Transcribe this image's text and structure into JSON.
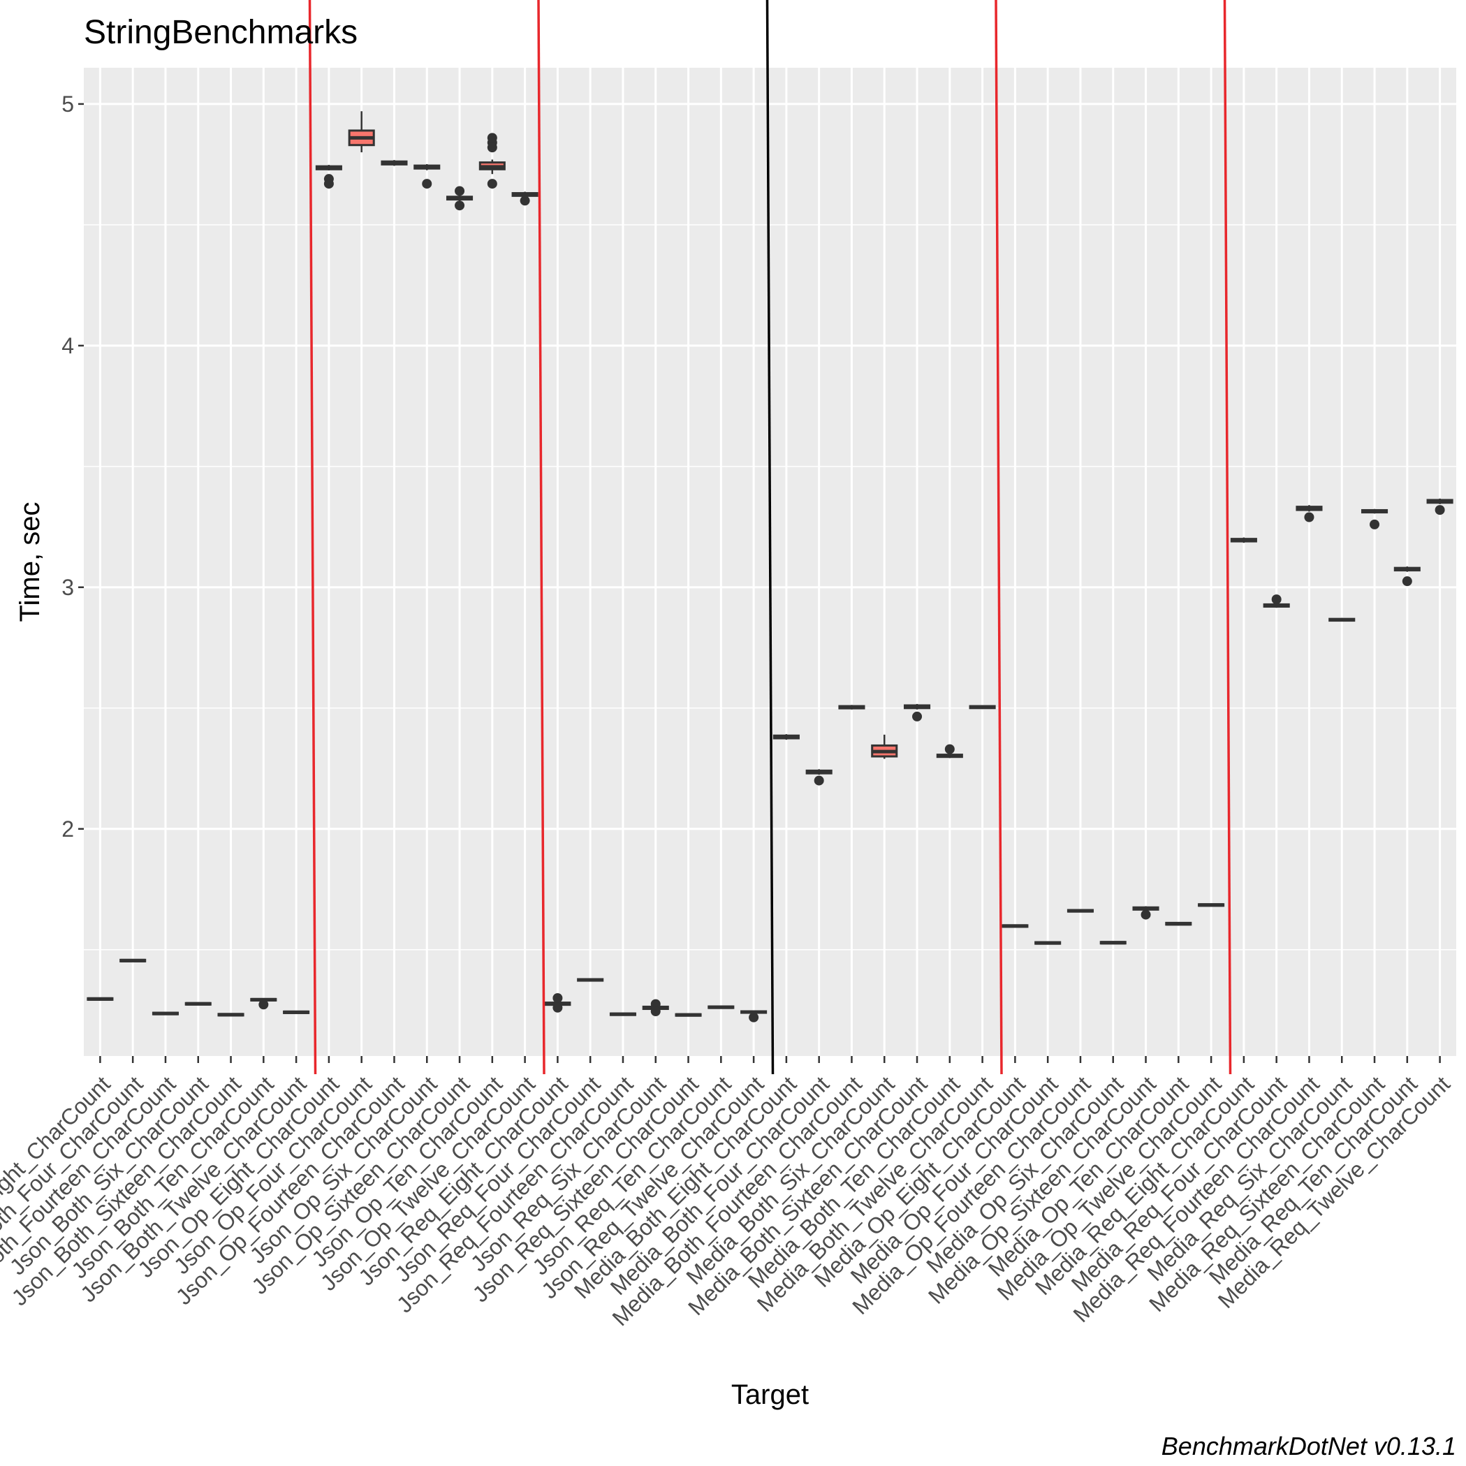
{
  "chart_data": {
    "type": "box",
    "title": "StringBenchmarks",
    "xlabel": "Target",
    "ylabel": "Time, sec",
    "caption": "BenchmarkDotNet v0.13.1",
    "ylim": [
      1.06,
      5.15
    ],
    "yticks": [
      2,
      3,
      4,
      5
    ],
    "grid": true,
    "box_fill": "#f8766d",
    "panel_bg": "#ebebeb",
    "categories": [
      "Json_Both_Eight_CharCount",
      "Json_Both_Four_CharCount",
      "Json_Both_Fourteen_CharCount",
      "Json_Both_Six_CharCount",
      "Json_Both_Sixteen_CharCount",
      "Json_Both_Ten_CharCount",
      "Json_Both_Twelve_CharCount",
      "Json_Op_Eight_CharCount",
      "Json_Op_Four_CharCount",
      "Json_Op_Fourteen_CharCount",
      "Json_Op_Six_CharCount",
      "Json_Op_Sixteen_CharCount",
      "Json_Op_Ten_CharCount",
      "Json_Op_Twelve_CharCount",
      "Json_Req_Eight_CharCount",
      "Json_Req_Four_CharCount",
      "Json_Req_Fourteen_CharCount",
      "Json_Req_Six_CharCount",
      "Json_Req_Sixteen_CharCount",
      "Json_Req_Ten_CharCount",
      "Json_Req_Twelve_CharCount",
      "Media_Both_Eight_CharCount",
      "Media_Both_Four_CharCount",
      "Media_Both_Fourteen_CharCount",
      "Media_Both_Six_CharCount",
      "Media_Both_Sixteen_CharCount",
      "Media_Both_Ten_CharCount",
      "Media_Both_Twelve_CharCount",
      "Media_Op_Eight_CharCount",
      "Media_Op_Four_CharCount",
      "Media_Op_Fourteen_CharCount",
      "Media_Op_Six_CharCount",
      "Media_Op_Sixteen_CharCount",
      "Media_Op_Ten_CharCount",
      "Media_Op_Twelve_CharCount",
      "Media_Req_Eight_CharCount",
      "Media_Req_Four_CharCount",
      "Media_Req_Fourteen_CharCount",
      "Media_Req_Six_CharCount",
      "Media_Req_Sixteen_CharCount",
      "Media_Req_Ten_CharCount",
      "Media_Req_Twelve_CharCount"
    ],
    "boxes": [
      {
        "q1": 1.293,
        "median": 1.296,
        "q3": 1.299,
        "lo": 1.29,
        "hi": 1.302,
        "outliers": []
      },
      {
        "q1": 1.452,
        "median": 1.455,
        "q3": 1.458,
        "lo": 1.449,
        "hi": 1.461,
        "outliers": []
      },
      {
        "q1": 1.233,
        "median": 1.236,
        "q3": 1.239,
        "lo": 1.23,
        "hi": 1.242,
        "outliers": []
      },
      {
        "q1": 1.273,
        "median": 1.276,
        "q3": 1.279,
        "lo": 1.27,
        "hi": 1.283,
        "outliers": []
      },
      {
        "q1": 1.228,
        "median": 1.231,
        "q3": 1.234,
        "lo": 1.225,
        "hi": 1.237,
        "outliers": []
      },
      {
        "q1": 1.29,
        "median": 1.293,
        "q3": 1.296,
        "lo": 1.286,
        "hi": 1.299,
        "outliers": [
          1.273
        ]
      },
      {
        "q1": 1.238,
        "median": 1.241,
        "q3": 1.244,
        "lo": 1.235,
        "hi": 1.247,
        "outliers": []
      },
      {
        "q1": 4.73,
        "median": 4.735,
        "q3": 4.742,
        "lo": 4.725,
        "hi": 4.748,
        "outliers": [
          4.69,
          4.67
        ]
      },
      {
        "q1": 4.83,
        "median": 4.86,
        "q3": 4.89,
        "lo": 4.8,
        "hi": 4.97,
        "outliers": []
      },
      {
        "q1": 4.75,
        "median": 4.755,
        "q3": 4.762,
        "lo": 4.744,
        "hi": 4.768,
        "outliers": []
      },
      {
        "q1": 4.733,
        "median": 4.738,
        "q3": 4.745,
        "lo": 4.726,
        "hi": 4.751,
        "outliers": [
          4.67
        ]
      },
      {
        "q1": 4.605,
        "median": 4.61,
        "q3": 4.616,
        "lo": 4.599,
        "hi": 4.622,
        "outliers": [
          4.64,
          4.58
        ]
      },
      {
        "q1": 4.73,
        "median": 4.74,
        "q3": 4.758,
        "lo": 4.71,
        "hi": 4.77,
        "outliers": [
          4.86,
          4.84,
          4.82,
          4.67
        ]
      },
      {
        "q1": 4.62,
        "median": 4.625,
        "q3": 4.631,
        "lo": 4.614,
        "hi": 4.637,
        "outliers": [
          4.6
        ]
      },
      {
        "q1": 1.272,
        "median": 1.276,
        "q3": 1.281,
        "lo": 1.266,
        "hi": 1.287,
        "outliers": [
          1.3,
          1.26
        ]
      },
      {
        "q1": 1.372,
        "median": 1.375,
        "q3": 1.378,
        "lo": 1.369,
        "hi": 1.381,
        "outliers": []
      },
      {
        "q1": 1.23,
        "median": 1.233,
        "q3": 1.236,
        "lo": 1.227,
        "hi": 1.239,
        "outliers": []
      },
      {
        "q1": 1.255,
        "median": 1.259,
        "q3": 1.264,
        "lo": 1.25,
        "hi": 1.27,
        "outliers": [
          1.275,
          1.245
        ]
      },
      {
        "q1": 1.227,
        "median": 1.23,
        "q3": 1.233,
        "lo": 1.224,
        "hi": 1.236,
        "outliers": []
      },
      {
        "q1": 1.259,
        "median": 1.262,
        "q3": 1.265,
        "lo": 1.256,
        "hi": 1.268,
        "outliers": []
      },
      {
        "q1": 1.239,
        "median": 1.242,
        "q3": 1.245,
        "lo": 1.236,
        "hi": 1.248,
        "outliers": [
          1.22
        ]
      },
      {
        "q1": 2.375,
        "median": 2.38,
        "q3": 2.386,
        "lo": 2.369,
        "hi": 2.392,
        "outliers": []
      },
      {
        "q1": 2.23,
        "median": 2.235,
        "q3": 2.241,
        "lo": 2.224,
        "hi": 2.247,
        "outliers": [
          2.2
        ]
      },
      {
        "q1": 2.499,
        "median": 2.503,
        "q3": 2.508,
        "lo": 2.494,
        "hi": 2.513,
        "outliers": []
      },
      {
        "q1": 2.3,
        "median": 2.32,
        "q3": 2.345,
        "lo": 2.29,
        "hi": 2.39,
        "outliers": []
      },
      {
        "q1": 2.5,
        "median": 2.505,
        "q3": 2.511,
        "lo": 2.494,
        "hi": 2.517,
        "outliers": [
          2.465
        ]
      },
      {
        "q1": 2.298,
        "median": 2.302,
        "q3": 2.307,
        "lo": 2.293,
        "hi": 2.312,
        "outliers": [
          2.33
        ]
      },
      {
        "q1": 2.5,
        "median": 2.504,
        "q3": 2.508,
        "lo": 2.496,
        "hi": 2.512,
        "outliers": []
      },
      {
        "q1": 1.595,
        "median": 1.598,
        "q3": 1.601,
        "lo": 1.592,
        "hi": 1.604,
        "outliers": []
      },
      {
        "q1": 1.525,
        "median": 1.528,
        "q3": 1.531,
        "lo": 1.522,
        "hi": 1.534,
        "outliers": []
      },
      {
        "q1": 1.658,
        "median": 1.661,
        "q3": 1.664,
        "lo": 1.655,
        "hi": 1.667,
        "outliers": []
      },
      {
        "q1": 1.526,
        "median": 1.529,
        "q3": 1.532,
        "lo": 1.523,
        "hi": 1.535,
        "outliers": []
      },
      {
        "q1": 1.666,
        "median": 1.67,
        "q3": 1.675,
        "lo": 1.66,
        "hi": 1.68,
        "outliers": [
          1.645
        ]
      },
      {
        "q1": 1.604,
        "median": 1.607,
        "q3": 1.611,
        "lo": 1.6,
        "hi": 1.615,
        "outliers": []
      },
      {
        "q1": 1.682,
        "median": 1.685,
        "q3": 1.688,
        "lo": 1.679,
        "hi": 1.691,
        "outliers": []
      },
      {
        "q1": 3.19,
        "median": 3.195,
        "q3": 3.2,
        "lo": 3.184,
        "hi": 3.206,
        "outliers": []
      },
      {
        "q1": 2.92,
        "median": 2.924,
        "q3": 2.929,
        "lo": 2.915,
        "hi": 2.934,
        "outliers": [
          2.95
        ]
      },
      {
        "q1": 3.32,
        "median": 3.326,
        "q3": 3.333,
        "lo": 3.313,
        "hi": 3.34,
        "outliers": [
          3.29
        ]
      },
      {
        "q1": 2.862,
        "median": 2.865,
        "q3": 2.869,
        "lo": 2.858,
        "hi": 2.873,
        "outliers": []
      },
      {
        "q1": 3.31,
        "median": 3.314,
        "q3": 3.319,
        "lo": 3.305,
        "hi": 3.324,
        "outliers": [
          3.26
        ]
      },
      {
        "q1": 3.07,
        "median": 3.075,
        "q3": 3.08,
        "lo": 3.064,
        "hi": 3.086,
        "outliers": [
          3.025
        ]
      },
      {
        "q1": 3.35,
        "median": 3.355,
        "q3": 3.361,
        "lo": 3.344,
        "hi": 3.367,
        "outliers": [
          3.32
        ]
      }
    ],
    "separators": [
      {
        "after_index": 6,
        "color": "#e8272c"
      },
      {
        "after_index": 13,
        "color": "#e8272c"
      },
      {
        "after_index": 20,
        "color": "#000000"
      },
      {
        "after_index": 27,
        "color": "#e8272c"
      },
      {
        "after_index": 34,
        "color": "#e8272c"
      }
    ]
  }
}
